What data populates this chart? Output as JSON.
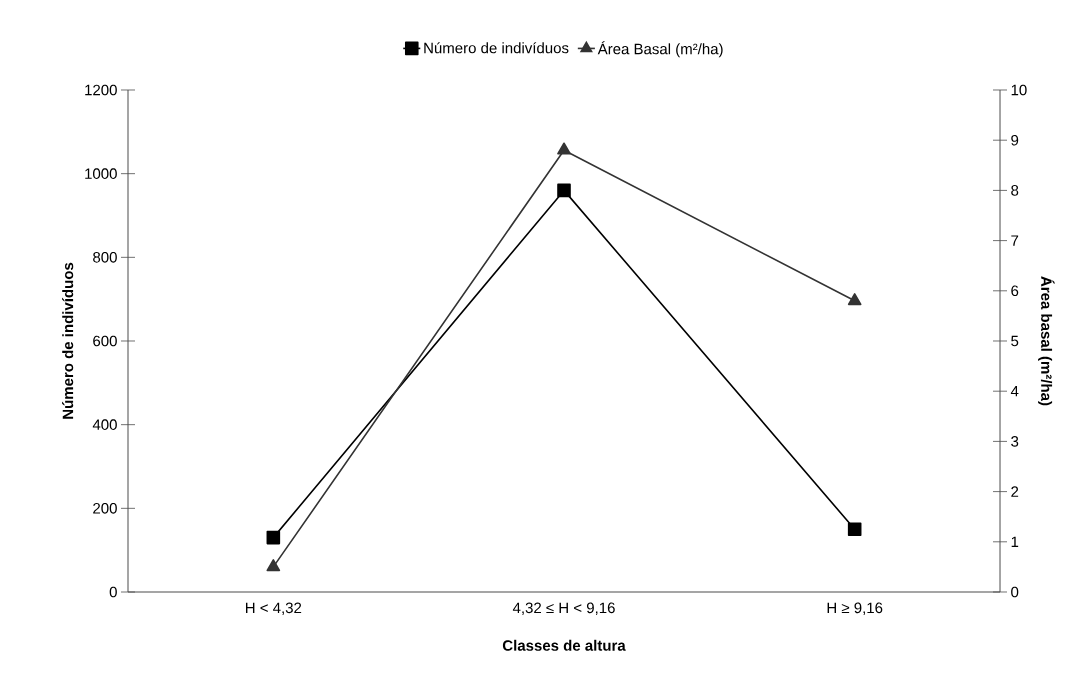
{
  "chart_data": {
    "type": "line",
    "xlabel": "Classes de altura",
    "ylabel": "Número de indivíduos",
    "y2label": "Área basal (m²/ha)",
    "categories": [
      "H < 4,32",
      "4,32 ≤ H < 9,16",
      "H ≥ 9,16"
    ],
    "series": [
      {
        "name": "Número de indivíduos",
        "color": "#000000",
        "marker": "square",
        "values": [
          130,
          960,
          150
        ]
      },
      {
        "name": "Área Basal (m²/ha)",
        "color": "#333333",
        "marker": "triangle",
        "axis": "y2",
        "values": [
          0.5,
          8.8,
          5.8
        ]
      }
    ],
    "ylim": [
      0,
      1200
    ],
    "yticks": [
      0,
      200,
      400,
      600,
      800,
      1000,
      1200
    ],
    "y2lim": [
      0,
      10
    ],
    "y2ticks": [
      0,
      1,
      2,
      3,
      4,
      5,
      6,
      7,
      8,
      9,
      10
    ],
    "legend": "top",
    "grid": false
  }
}
